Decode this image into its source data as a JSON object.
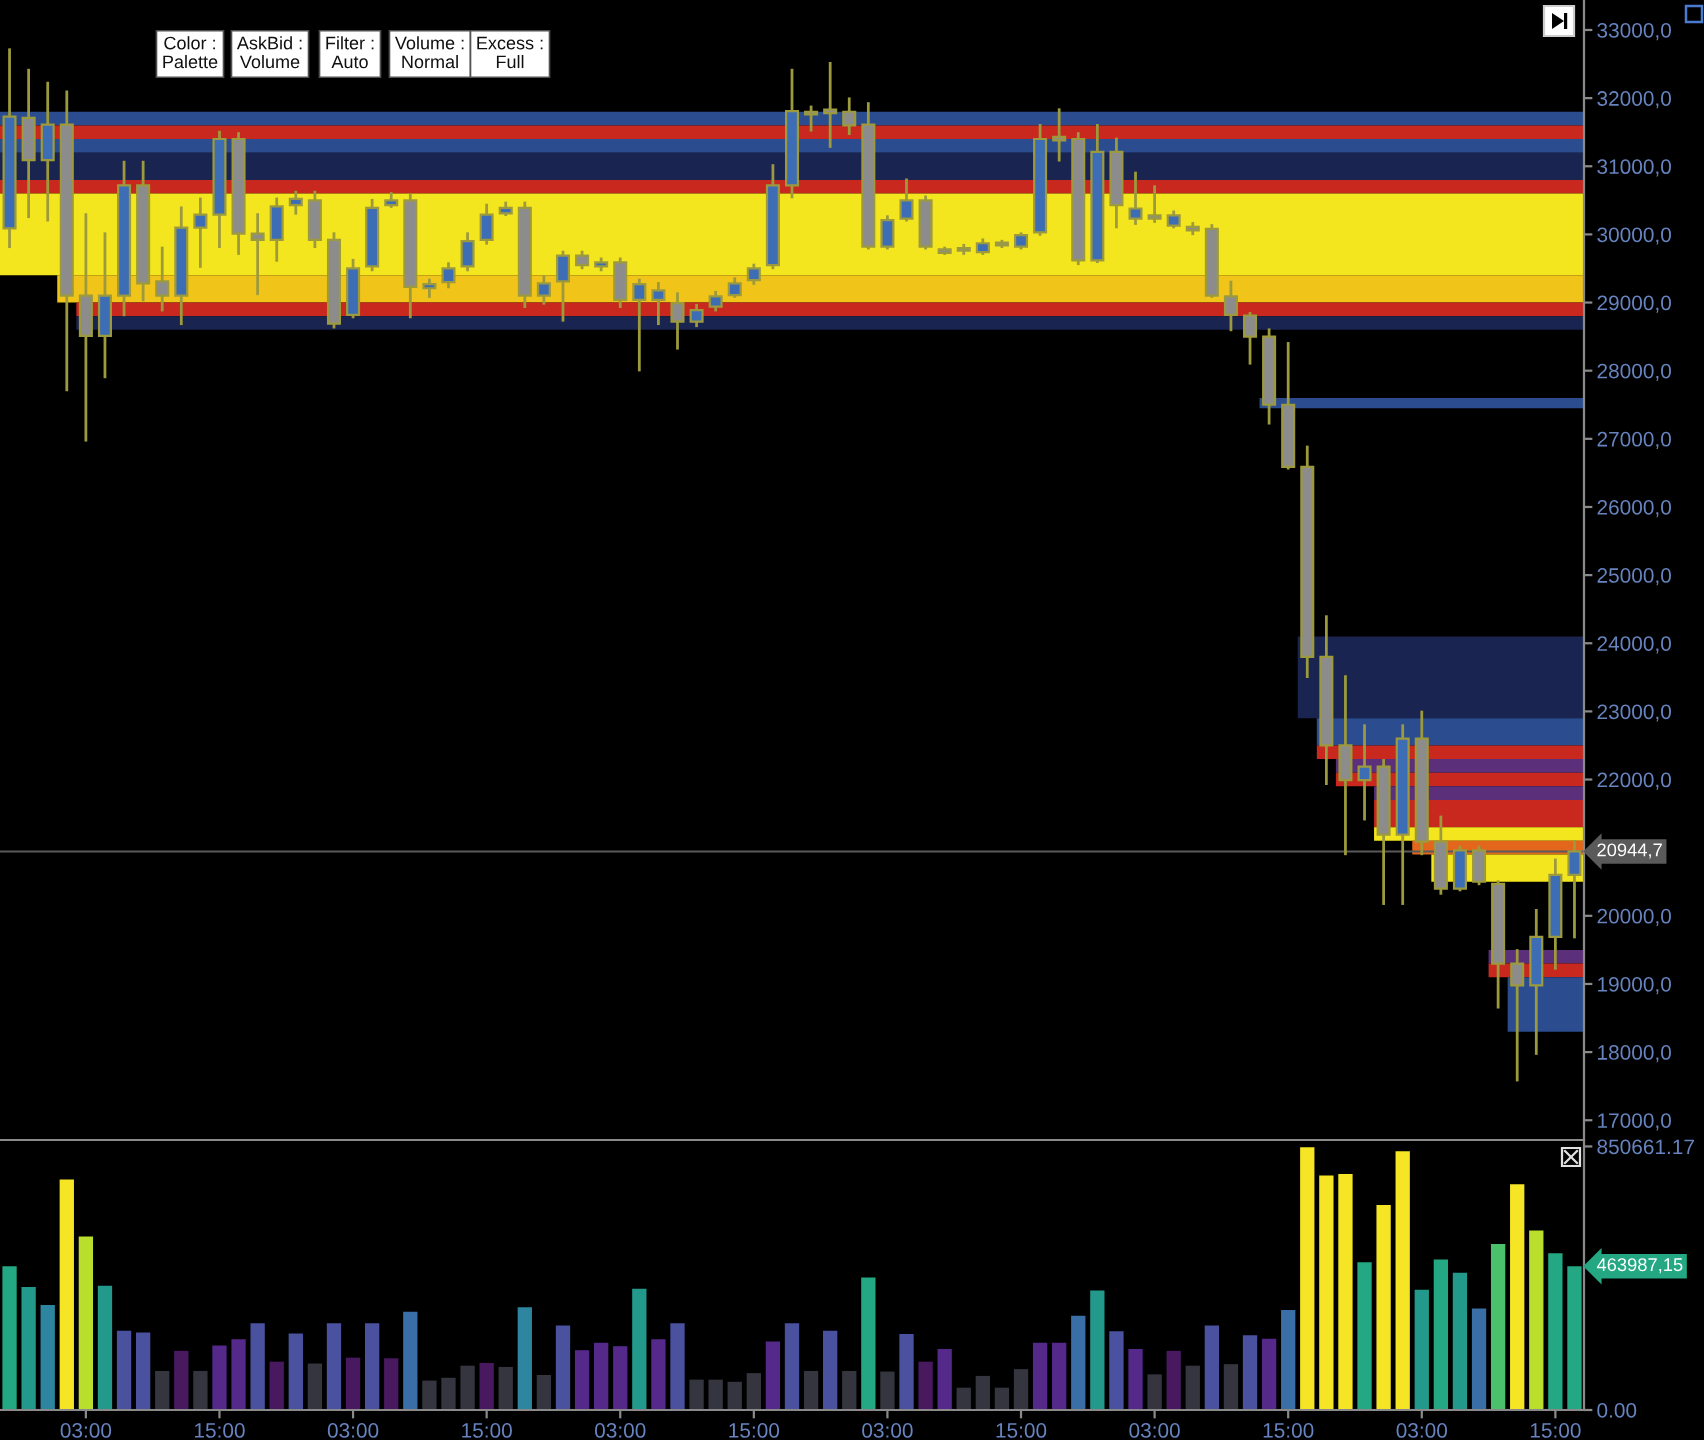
{
  "chart_data": [
    {
      "type": "candlestick",
      "categories": [
        null,
        null,
        null,
        null,
        null,
        null,
        null,
        null,
        null,
        null,
        null,
        null,
        null,
        null,
        null,
        null,
        null,
        null,
        null,
        null,
        null,
        null,
        null,
        null,
        null,
        null,
        null,
        null,
        null,
        null,
        null,
        null,
        null,
        null,
        null,
        null,
        null,
        null,
        null,
        null,
        null,
        null,
        null,
        null,
        null,
        null,
        null,
        null,
        null,
        null,
        null,
        null,
        null,
        null,
        null,
        null,
        null,
        null,
        null,
        null,
        null,
        null,
        null,
        null,
        null,
        null,
        null,
        null,
        null,
        null,
        null,
        null,
        null,
        null,
        null,
        null,
        null,
        null,
        null,
        null,
        null,
        null,
        null
      ],
      "ohlc": [
        [
          30090,
          32710,
          29820,
          31730
        ],
        [
          31710,
          32410,
          30260,
          31090
        ],
        [
          31090,
          32220,
          30210,
          31610
        ],
        [
          31610,
          32090,
          27720,
          29100
        ],
        [
          29100,
          30290,
          26980,
          28510
        ],
        [
          28510,
          30010,
          27910,
          29100
        ],
        [
          29100,
          31060,
          28820,
          30720
        ],
        [
          30720,
          31060,
          29040,
          29280
        ],
        [
          29310,
          29800,
          28890,
          29100
        ],
        [
          29100,
          30390,
          28690,
          30100
        ],
        [
          30100,
          30520,
          29530,
          30290
        ],
        [
          30290,
          31500,
          29820,
          31400
        ],
        [
          31400,
          31480,
          29720,
          30010
        ],
        [
          30010,
          30290,
          29130,
          29920
        ],
        [
          29920,
          30520,
          29620,
          30410
        ],
        [
          30430,
          30620,
          30310,
          30520
        ],
        [
          30500,
          30620,
          29820,
          29920
        ],
        [
          29920,
          30010,
          28640,
          28690
        ],
        [
          28820,
          29620,
          28790,
          29500
        ],
        [
          29530,
          30500,
          29480,
          30390
        ],
        [
          30430,
          30600,
          30410,
          30500
        ],
        [
          30500,
          30580,
          28790,
          29230
        ],
        [
          29210,
          29330,
          29090,
          29270
        ],
        [
          29300,
          29570,
          29230,
          29500
        ],
        [
          29530,
          30010,
          29480,
          29900
        ],
        [
          29920,
          30430,
          29870,
          30290
        ],
        [
          30310,
          30460,
          30290,
          30390
        ],
        [
          30390,
          30460,
          28940,
          29100
        ],
        [
          29100,
          29380,
          28990,
          29280
        ],
        [
          29310,
          29740,
          28740,
          29690
        ],
        [
          29690,
          29740,
          29510,
          29550
        ],
        [
          29530,
          29640,
          29480,
          29590
        ],
        [
          29590,
          29640,
          28940,
          29040
        ],
        [
          29040,
          29330,
          28010,
          29270
        ],
        [
          29040,
          29280,
          28690,
          29180
        ],
        [
          28990,
          29130,
          28330,
          28720
        ],
        [
          28720,
          28960,
          28660,
          28890
        ],
        [
          28940,
          29150,
          28890,
          29090
        ],
        [
          29110,
          29350,
          29090,
          29280
        ],
        [
          29330,
          29550,
          29280,
          29500
        ],
        [
          29550,
          31010,
          29510,
          30720
        ],
        [
          30720,
          32410,
          30550,
          31810
        ],
        [
          31800,
          31870,
          31530,
          31760
        ],
        [
          31830,
          32510,
          31290,
          31780
        ],
        [
          31800,
          31990,
          31480,
          31600
        ],
        [
          31610,
          31920,
          29800,
          29820
        ],
        [
          29820,
          30260,
          29800,
          30210
        ],
        [
          30230,
          30800,
          30210,
          30500
        ],
        [
          30500,
          30550,
          29800,
          29820
        ],
        [
          29780,
          29800,
          29720,
          29730
        ],
        [
          29800,
          29840,
          29720,
          29760
        ],
        [
          29740,
          29920,
          29720,
          29870
        ],
        [
          29880,
          29900,
          29820,
          29840
        ],
        [
          29820,
          30010,
          29800,
          29990
        ],
        [
          30030,
          31600,
          30000,
          31400
        ],
        [
          31430,
          31830,
          31090,
          31380
        ],
        [
          31400,
          31480,
          29570,
          29620
        ],
        [
          29620,
          31600,
          29600,
          31210
        ],
        [
          31210,
          31400,
          30110,
          30430
        ],
        [
          30230,
          30900,
          30160,
          30380
        ],
        [
          30280,
          30700,
          30190,
          30230
        ],
        [
          30130,
          30330,
          30110,
          30280
        ],
        [
          30110,
          30160,
          30010,
          30060
        ],
        [
          30080,
          30130,
          29090,
          29100
        ],
        [
          29090,
          29300,
          28600,
          28820
        ],
        [
          28810,
          28840,
          28110,
          28500
        ],
        [
          28500,
          28600,
          27230,
          27500
        ],
        [
          27500,
          28400,
          26570,
          26590
        ],
        [
          26590,
          26880,
          23510,
          23800
        ],
        [
          23800,
          24390,
          21940,
          22500
        ],
        [
          22500,
          23510,
          20910,
          21990
        ],
        [
          21990,
          22790,
          21420,
          22190
        ],
        [
          22190,
          22280,
          20180,
          21190
        ],
        [
          21190,
          22790,
          20180,
          22600
        ],
        [
          22600,
          22990,
          20910,
          21090
        ],
        [
          21090,
          21450,
          20330,
          20400
        ],
        [
          20400,
          21010,
          20380,
          20960
        ],
        [
          20960,
          21010,
          20470,
          20500
        ],
        [
          20470,
          20500,
          18660,
          19300
        ],
        [
          19300,
          19490,
          17590,
          18980
        ],
        [
          18980,
          20080,
          17980,
          19690
        ],
        [
          19690,
          20820,
          19230,
          20600
        ],
        [
          20600,
          21090,
          19690,
          20944.7
        ]
      ],
      "colors": [
        "#3d6db5",
        "#8c8c8c",
        "#3d6db5",
        "#8c8c8c",
        "#8c8c8c",
        "#3d6db5",
        "#3d6db5",
        "#8c8c8c",
        "#8c8c8c",
        "#3d6db5",
        "#3d6db5",
        "#3d6db5",
        "#8c8c8c",
        "#8c8c8c",
        "#3d6db5",
        "#3d6db5",
        "#8c8c8c",
        "#8c8c8c",
        "#3d6db5",
        "#3d6db5",
        "#3d6db5",
        "#8c8c8c",
        "#3d6db5",
        "#3d6db5",
        "#3d6db5",
        "#3d6db5",
        "#3d6db5",
        "#8c8c8c",
        "#3d6db5",
        "#3d6db5",
        "#8c8c8c",
        "#3d6db5",
        "#8c8c8c",
        "#3d6db5",
        "#3d6db5",
        "#8c8c8c",
        "#3d6db5",
        "#3d6db5",
        "#3d6db5",
        "#3d6db5",
        "#3d6db5",
        "#3d6db5",
        "#8c8c8c",
        "#8c8c8c",
        "#8c8c8c",
        "#8c8c8c",
        "#3d6db5",
        "#3d6db5",
        "#8c8c8c",
        "#8c8c8c",
        "#8c8c8c",
        "#3d6db5",
        "#8c8c8c",
        "#3d6db5",
        "#3d6db5",
        "#8c8c8c",
        "#8c8c8c",
        "#3d6db5",
        "#8c8c8c",
        "#3d6db5",
        "#8c8c8c",
        "#3d6db5",
        "#8c8c8c",
        "#8c8c8c",
        "#8c8c8c",
        "#8c8c8c",
        "#8c8c8c",
        "#8c8c8c",
        "#8c8c8c",
        "#8c8c8c",
        "#8c8c8c",
        "#3d6db5",
        "#8c8c8c",
        "#3d6db5",
        "#8c8c8c",
        "#8c8c8c",
        "#3d6db5",
        "#8c8c8c",
        "#8c8c8c",
        "#8c8c8c",
        "#3d6db5",
        "#3d6db5",
        "#3d6db5"
      ],
      "color": "#9c9a3c",
      "bands": [
        {
          "axis": "y",
          "from": 31600,
          "to": 31800,
          "color": "#2b4d8f"
        },
        {
          "axis": "y",
          "from": 31400,
          "to": 31600,
          "color": "#c8281e"
        },
        {
          "axis": "y",
          "from": 31200,
          "to": 31400,
          "color": "#2b4d8f"
        },
        {
          "axis": "y",
          "from": 30800,
          "to": 31200,
          "color": "#1a2450"
        },
        {
          "axis": "y",
          "from": 30600,
          "to": 30800,
          "color": "#c8281e"
        },
        {
          "axis": "y",
          "from": 29400,
          "to": 30600,
          "color": "#f4e61e"
        },
        {
          "axis": "y",
          "from": 29000,
          "to": 29400,
          "color": "#f0c419"
        },
        {
          "axis": "y",
          "from": 28800,
          "to": 29000,
          "color": "#c8281e"
        },
        {
          "axis": "y",
          "from": 28600,
          "to": 28800,
          "color": "#1a2450"
        },
        {
          "axis": "y",
          "from": 27450,
          "to": 27600,
          "color": "#2b4d8f"
        },
        {
          "axis": "y",
          "from": 22900,
          "to": 24100,
          "color": "#1a2450"
        },
        {
          "axis": "y",
          "from": 22500,
          "to": 22900,
          "color": "#2b4d8f"
        },
        {
          "axis": "y",
          "from": 22300,
          "to": 22500,
          "color": "#c8281e"
        },
        {
          "axis": "y",
          "from": 22100,
          "to": 22300,
          "color": "#5b2f7a"
        },
        {
          "axis": "y",
          "from": 21900,
          "to": 22100,
          "color": "#c8281e"
        },
        {
          "axis": "y",
          "from": 21700,
          "to": 21900,
          "color": "#5b2f7a"
        },
        {
          "axis": "y",
          "from": 21300,
          "to": 21700,
          "color": "#c8281e"
        },
        {
          "axis": "y",
          "from": 21100,
          "to": 21300,
          "color": "#f4e61e"
        },
        {
          "axis": "y",
          "from": 20900,
          "to": 21100,
          "color": "#e2661c"
        },
        {
          "axis": "y",
          "from": 20500,
          "to": 20900,
          "color": "#f4e61e"
        },
        {
          "axis": "y",
          "from": 19300,
          "to": 19500,
          "color": "#5b2f7a"
        },
        {
          "axis": "y",
          "from": 19100,
          "to": 19300,
          "color": "#c8281e"
        },
        {
          "axis": "y",
          "from": 18300,
          "to": 19100,
          "color": "#2b4d8f"
        }
      ],
      "ylim": [
        16710,
        33440
      ],
      "yticks": [
        {
          "value": 17000,
          "label": "17000,0"
        },
        {
          "value": 18000,
          "label": "18000,0"
        },
        {
          "value": 19000,
          "label": "19000,0"
        },
        {
          "value": 20000,
          "label": "20000,0"
        },
        {
          "value": 22000,
          "label": "22000,0"
        },
        {
          "value": 23000,
          "label": "23000,0"
        },
        {
          "value": 24000,
          "label": "24000,0"
        },
        {
          "value": 25000,
          "label": "25000,0"
        },
        {
          "value": 26000,
          "label": "26000,0"
        },
        {
          "value": 27000,
          "label": "27000,0"
        },
        {
          "value": 28000,
          "label": "28000,0"
        },
        {
          "value": 29000,
          "label": "29000,0"
        },
        {
          "value": 30000,
          "label": "30000,0"
        },
        {
          "value": 31000,
          "label": "31000,0"
        },
        {
          "value": 32000,
          "label": "32000,0"
        },
        {
          "value": 33000,
          "label": "33000,0"
        }
      ],
      "tick_labels": "y",
      "ref_lines": [
        {
          "axis": "y",
          "value": 20944.7,
          "label": "20944,7",
          "color": "#5a5a5a"
        }
      ],
      "annotations": [
        "Color :\nPalette",
        "AskBid :\nVolume",
        "Filter :\nAuto",
        "Volume :\nNormal",
        "Excess :\nFull"
      ]
    },
    {
      "type": "bar",
      "categories": [
        null,
        null,
        null,
        null,
        "03:00",
        null,
        null,
        null,
        null,
        null,
        null,
        "15:00",
        null,
        null,
        null,
        null,
        null,
        null,
        "03:00",
        null,
        null,
        null,
        null,
        null,
        null,
        "15:00",
        null,
        null,
        null,
        null,
        null,
        null,
        "03:00",
        null,
        null,
        null,
        null,
        null,
        null,
        "15:00",
        null,
        null,
        null,
        null,
        null,
        null,
        "03:00",
        null,
        null,
        null,
        null,
        null,
        null,
        "15:00",
        null,
        null,
        null,
        null,
        null,
        null,
        "03:00",
        null,
        null,
        null,
        null,
        null,
        null,
        "15:00",
        null,
        null,
        null,
        null,
        null,
        null,
        "03:00",
        null,
        null,
        null,
        null,
        null,
        null,
        "15:00",
        null
      ],
      "values": [
        464000,
        397000,
        339000,
        744000,
        560000,
        401000,
        256000,
        250000,
        126000,
        191000,
        126000,
        208000,
        228000,
        280000,
        156000,
        247000,
        150000,
        280000,
        169000,
        280000,
        167000,
        317000,
        95000,
        104000,
        143000,
        152000,
        139000,
        332000,
        113000,
        273000,
        193000,
        217000,
        206000,
        391000,
        228000,
        280000,
        98000,
        98000,
        91000,
        119000,
        221000,
        280000,
        126000,
        256000,
        126000,
        428000,
        124000,
        245000,
        156000,
        197000,
        72000,
        110000,
        72000,
        132000,
        217000,
        217000,
        304000,
        386000,
        254000,
        197000,
        115000,
        191000,
        143000,
        273000,
        148000,
        241000,
        230000,
        323000,
        848000,
        757000,
        762000,
        477000,
        662000,
        835000,
        388000,
        486000,
        443000,
        328000,
        536000,
        729000,
        579000,
        506000,
        463987.15
      ],
      "colors": [
        "#24a883",
        "#22998b",
        "#2d85a0",
        "#f6e524",
        "#b9de2b",
        "#22998b",
        "#4a52a0",
        "#4a52a0",
        "#35353f",
        "#48195f",
        "#35353f",
        "#54298a",
        "#54298a",
        "#4a52a0",
        "#48195f",
        "#4a52a0",
        "#35353f",
        "#4a52a0",
        "#48195f",
        "#4a52a0",
        "#48195f",
        "#3a6ea6",
        "#35353f",
        "#35353f",
        "#35353f",
        "#48195f",
        "#35353f",
        "#2d85a0",
        "#35353f",
        "#4a52a0",
        "#54298a",
        "#54298a",
        "#54298a",
        "#22998b",
        "#54298a",
        "#4a52a0",
        "#35353f",
        "#35353f",
        "#35353f",
        "#35353f",
        "#54298a",
        "#4a52a0",
        "#35353f",
        "#4a52a0",
        "#35353f",
        "#24a883",
        "#35353f",
        "#4a52a0",
        "#48195f",
        "#54298a",
        "#35353f",
        "#35353f",
        "#35353f",
        "#35353f",
        "#54298a",
        "#54298a",
        "#3a6ea6",
        "#22998b",
        "#4a52a0",
        "#54298a",
        "#35353f",
        "#48195f",
        "#35353f",
        "#4a52a0",
        "#35353f",
        "#4a52a0",
        "#54298a",
        "#3a6ea6",
        "#f6e524",
        "#f6e524",
        "#f6e524",
        "#24a883",
        "#f6e524",
        "#f6e524",
        "#22998b",
        "#24a883",
        "#22998b",
        "#3a6ea6",
        "#4cc16b",
        "#f6e524",
        "#b9de2b",
        "#24a883",
        "#24a883"
      ],
      "ylim": [
        0,
        865000
      ],
      "yticks": [
        {
          "value": 0,
          "label": "0.00"
        },
        {
          "value": 850661.17,
          "label": "850661.17"
        }
      ],
      "annotations": [
        "463987,15"
      ]
    }
  ]
}
